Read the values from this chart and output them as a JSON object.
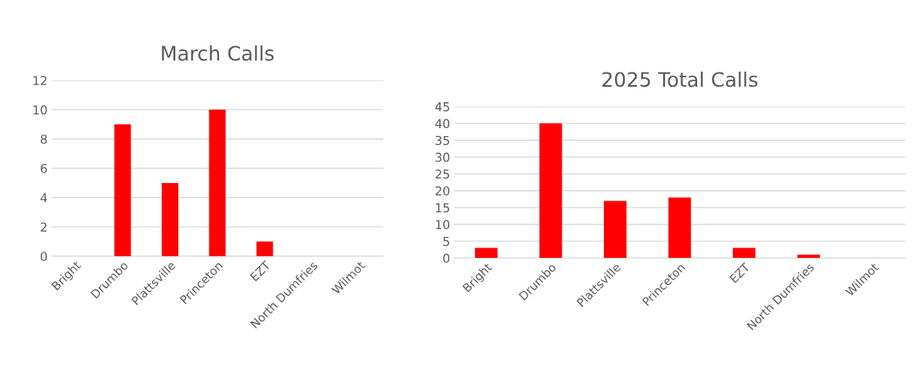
{
  "chart_data": [
    {
      "type": "bar",
      "title": "March Calls",
      "categories": [
        "Bright",
        "Drumbo",
        "Plattsville",
        "Princeton",
        "EZT",
        "North Dumfries",
        "Wilmot"
      ],
      "values": [
        0,
        9,
        5,
        10,
        1,
        0,
        0
      ],
      "color": "#ff0000",
      "ylim": [
        0,
        12
      ],
      "yticks": [
        0,
        2,
        4,
        6,
        8,
        10,
        12
      ],
      "grid": "y"
    },
    {
      "type": "bar",
      "title": "2025 Total Calls",
      "categories": [
        "Bright",
        "Drumbo",
        "Plattsville",
        "Princeton",
        "EZT",
        "North Dumfries",
        "Wilmot"
      ],
      "values": [
        3,
        40,
        17,
        18,
        3,
        1,
        0
      ],
      "color": "#ff0000",
      "ylim": [
        0,
        45
      ],
      "yticks": [
        0,
        5,
        10,
        15,
        20,
        25,
        30,
        35,
        40,
        45
      ],
      "grid": "y"
    }
  ]
}
